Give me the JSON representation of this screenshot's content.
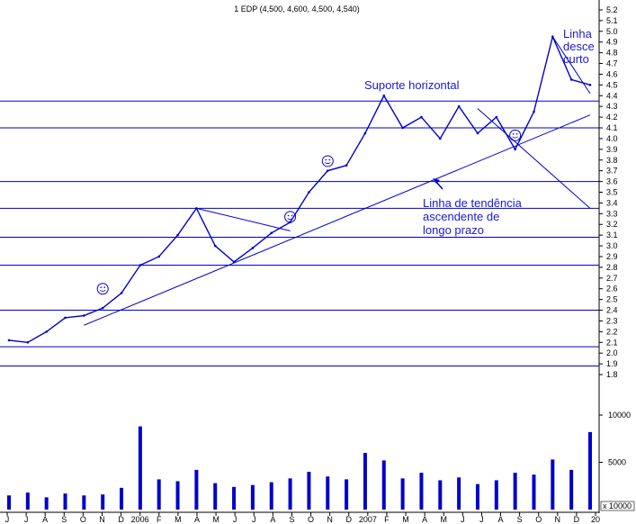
{
  "chart_data": {
    "type": "line",
    "title": "1 EDP (4,500, 4,600, 4,500, 4,540)",
    "price_axis": {
      "ticks": [
        "5.2",
        "5.1",
        "5.0",
        "4.9",
        "4.8",
        "4.7",
        "4.6",
        "4.5",
        "4.4",
        "4.3",
        "4.2",
        "4.1",
        "4.0",
        "3.9",
        "3.8",
        "3.7",
        "3.6",
        "3.5",
        "3.4",
        "3.3",
        "3.2",
        "3.1",
        "3.0",
        "2.9",
        "2.8",
        "2.7",
        "2.6",
        "2.5",
        "2.4",
        "2.3",
        "2.2",
        "2.1",
        "2.0",
        "1.9",
        "1.8"
      ],
      "ylim": [
        1.75,
        5.25
      ]
    },
    "volume_axis": {
      "ticks": [
        "10000",
        "5000"
      ],
      "unit_label": "x 10000"
    },
    "x_axis": {
      "labels": [
        "J",
        "J",
        "A",
        "S",
        "O",
        "N",
        "D",
        "2006",
        "F",
        "M",
        "A",
        "M",
        "J",
        "J",
        "A",
        "S",
        "O",
        "N",
        "D",
        "2007",
        "F",
        "M",
        "A",
        "M",
        "J",
        "J",
        "A",
        "S",
        "O",
        "N",
        "D",
        "20"
      ]
    },
    "series": [
      {
        "name": "",
        "x": [
          "2005-06",
          "2005-07",
          "2005-08",
          "2005-09",
          "2005-10",
          "2005-11",
          "2005-12",
          "2006-01",
          "2006-02",
          "2006-03",
          "2006-04",
          "2006-05",
          "2006-06",
          "2006-07",
          "2006-08",
          "2006-09",
          "2006-10",
          "2006-11",
          "2006-12",
          "2007-01",
          "2007-02",
          "2007-03",
          "2007-04",
          "2007-05",
          "2007-06",
          "2007-07",
          "2007-08",
          "2007-09",
          "2007-10",
          "2007-11",
          "2007-12",
          "2008-01"
        ],
        "values": [
          2.12,
          2.1,
          2.2,
          2.33,
          2.35,
          2.42,
          2.56,
          2.82,
          2.9,
          3.1,
          3.35,
          3.0,
          2.85,
          2.98,
          3.12,
          3.22,
          3.5,
          3.7,
          3.75,
          4.05,
          4.4,
          4.1,
          4.2,
          4.0,
          4.3,
          4.05,
          4.2,
          3.9,
          4.25,
          4.95,
          4.55,
          4.5
        ]
      }
    ],
    "volume_values": [
      1500,
      1800,
      1300,
      1700,
      1500,
      1600,
      2300,
      8800,
      3200,
      3000,
      4200,
      2800,
      2400,
      2600,
      2900,
      3300,
      4000,
      3500,
      3200,
      6000,
      5200,
      3300,
      3900,
      3100,
      3400,
      2700,
      3100,
      3900,
      3700,
      5300,
      4200,
      8200
    ],
    "horizontal_levels": [
      4.35,
      4.1,
      3.6,
      3.35,
      3.08,
      2.82,
      2.4,
      2.06,
      1.88
    ],
    "trendlines": [
      {
        "from": [
          "2005-10",
          2.26
        ],
        "to": [
          "2008-01",
          4.22
        ]
      },
      {
        "from": [
          "2006-04",
          3.35
        ],
        "to": [
          "2006-09",
          3.14
        ]
      },
      {
        "from": [
          "2007-07",
          4.28
        ],
        "to": [
          "2008-01",
          3.35
        ]
      },
      {
        "from": [
          "2007-11",
          4.95
        ],
        "to": [
          "2008-01",
          4.42
        ]
      }
    ],
    "smiley_markers": [
      {
        "x": "2005-11",
        "y": 2.6
      },
      {
        "x": "2006-09",
        "y": 3.27
      },
      {
        "x": "2006-11",
        "y": 3.79
      },
      {
        "x": "2007-09",
        "y": 4.03
      }
    ],
    "annotations": [
      {
        "id": "resist",
        "lines": [
          "Linha",
          "desce",
          "curto"
        ]
      },
      {
        "id": "support",
        "lines": [
          "Suporte horizontal"
        ]
      },
      {
        "id": "trend",
        "lines": [
          "Linha de tendência",
          "ascendente de",
          "longo prazo"
        ]
      }
    ],
    "grid": true,
    "colors": {
      "price": "#0000cc",
      "lines": "#0000cc",
      "annotation": "#1a1ad0",
      "axis": "#000000"
    }
  }
}
